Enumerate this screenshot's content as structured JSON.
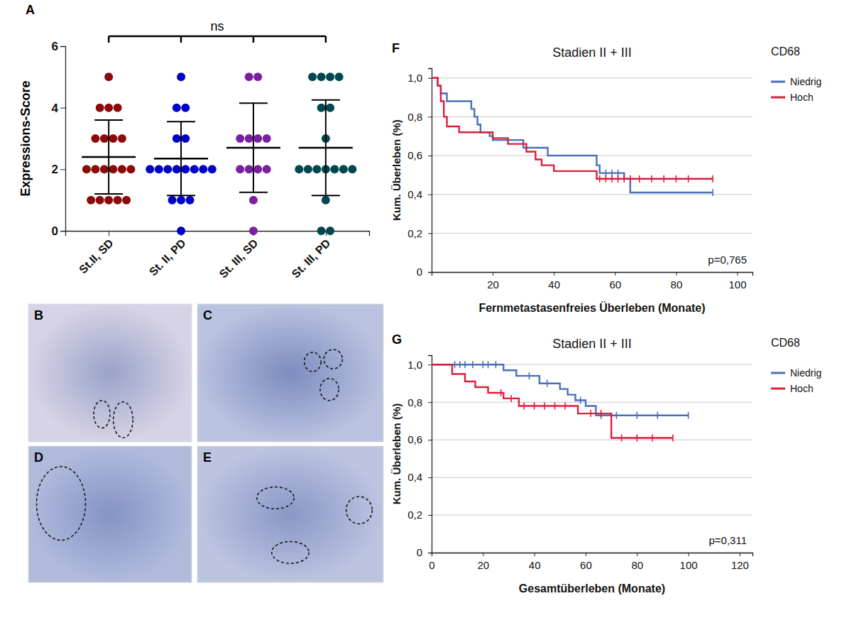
{
  "chart_data": [
    {
      "type": "dot_plot",
      "panel": "A",
      "y_label": "Expressions-Score",
      "annotation": "ns",
      "categories": [
        "St.II, SD",
        "St. II, PD",
        "St. III, SD",
        "St. III, PD"
      ],
      "colors": [
        "#8b0a0a",
        "#0000c8",
        "#7a1fa0",
        "#00474f"
      ],
      "values": [
        [
          5,
          4,
          4,
          4,
          3,
          3,
          3,
          3,
          2,
          2,
          2,
          2,
          2,
          2,
          1,
          1,
          1,
          1,
          1
        ],
        [
          5,
          4,
          4,
          3,
          3,
          2,
          2,
          2,
          2,
          2,
          2,
          2,
          2,
          1,
          1,
          1,
          0
        ],
        [
          5,
          5,
          3,
          3,
          3,
          3,
          2,
          2,
          2,
          2,
          1,
          0
        ],
        [
          5,
          5,
          5,
          5,
          4,
          4,
          3,
          2,
          2,
          2,
          2,
          2,
          2,
          2,
          1,
          0,
          0
        ]
      ],
      "mean": [
        2.4,
        2.35,
        2.7,
        2.7
      ],
      "error": [
        1.2,
        1.2,
        1.45,
        1.55
      ],
      "ylim": [
        0,
        6
      ],
      "yticks": [
        0,
        2,
        4,
        6
      ]
    },
    {
      "type": "step",
      "panel": "F",
      "title": "Stadien II + III",
      "x_label": "Fernmetastasenfreies Überleben (Monate)",
      "y_label": "Kum. Überleben (%)",
      "annotation": "p=0,765",
      "legend_title": "CD68",
      "legend": "right",
      "grid": true,
      "xlim": [
        0,
        105
      ],
      "xticks": [
        20,
        40,
        60,
        80,
        100
      ],
      "ylim": [
        0,
        1.05
      ],
      "yticks": [
        {
          "value": 1,
          "label": "1,0"
        },
        {
          "value": 0.8,
          "label": "0,8"
        },
        {
          "value": 0.6,
          "label": "0,6"
        },
        {
          "value": 0.4,
          "label": "0,4"
        },
        {
          "value": 0.2,
          "label": "0,2"
        },
        0
      ],
      "series": [
        {
          "name": "Niedrig",
          "color": "#4a6fb5",
          "x": [
            0,
            2,
            3,
            5,
            13,
            14,
            15,
            16,
            19,
            20,
            30,
            38,
            54,
            55,
            63,
            65,
            92
          ],
          "values": [
            1,
            0.96,
            0.92,
            0.88,
            0.84,
            0.8,
            0.76,
            0.72,
            0.7,
            0.68,
            0.64,
            0.6,
            0.55,
            0.51,
            0.48,
            0.41,
            0.41
          ],
          "censored": [
            57,
            59,
            61,
            92
          ]
        },
        {
          "name": "Hoch",
          "color": "#dc1e3c",
          "x": [
            0,
            2,
            3,
            4,
            5,
            9,
            20,
            25,
            31,
            34,
            36,
            40,
            54,
            92
          ],
          "values": [
            1,
            0.96,
            0.88,
            0.8,
            0.75,
            0.72,
            0.69,
            0.66,
            0.62,
            0.58,
            0.55,
            0.52,
            0.48,
            0.48
          ],
          "censored": [
            55,
            57,
            59,
            61,
            63,
            65,
            68,
            72,
            76,
            80,
            84,
            92
          ]
        }
      ]
    },
    {
      "type": "step",
      "panel": "G",
      "title": "Stadien II + III",
      "x_label": "Gesamtüberleben (Monate)",
      "y_label": "Kum. Überleben (%)",
      "annotation": "p=0,311",
      "legend_title": "CD68",
      "legend": "right",
      "grid": true,
      "xlim": [
        0,
        125
      ],
      "xticks": [
        0,
        20,
        40,
        60,
        80,
        100,
        120
      ],
      "ylim": [
        0,
        1.05
      ],
      "yticks": [
        {
          "value": 1,
          "label": "1,0"
        },
        {
          "value": 0.8,
          "label": "0,8"
        },
        {
          "value": 0.6,
          "label": "0,6"
        },
        {
          "value": 0.4,
          "label": "0,4"
        },
        {
          "value": 0.2,
          "label": "0,2"
        },
        0
      ],
      "series": [
        {
          "name": "Niedrig",
          "color": "#4a6fb5",
          "x": [
            0,
            28,
            33,
            42,
            50,
            53,
            56,
            60,
            64,
            100
          ],
          "values": [
            1,
            0.97,
            0.94,
            0.9,
            0.87,
            0.84,
            0.81,
            0.78,
            0.73,
            0.73
          ],
          "censored": [
            9,
            11,
            13,
            16,
            20,
            22,
            25,
            38,
            45,
            58,
            66,
            72,
            80,
            88,
            100
          ]
        },
        {
          "name": "Hoch",
          "color": "#dc1e3c",
          "x": [
            0,
            8,
            13,
            17,
            22,
            28,
            34,
            57,
            70,
            94
          ],
          "values": [
            1,
            0.95,
            0.91,
            0.88,
            0.85,
            0.82,
            0.78,
            0.74,
            0.61,
            0.61
          ],
          "censored": [
            27,
            31,
            36,
            40,
            44,
            48,
            52,
            62,
            66,
            74,
            80,
            86,
            94
          ]
        }
      ]
    }
  ],
  "images": [
    {
      "label": "B"
    },
    {
      "label": "C"
    },
    {
      "label": "D"
    },
    {
      "label": "E"
    }
  ]
}
